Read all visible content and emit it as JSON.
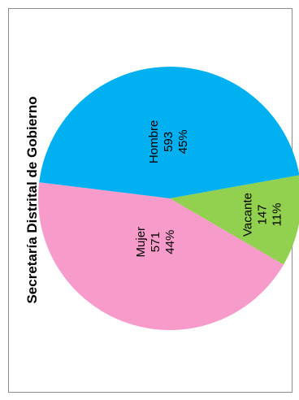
{
  "chart_data": {
    "type": "pie",
    "title": "Secretaría Distrital de Gobierno",
    "slices": [
      {
        "label": "Mujer",
        "value": 571,
        "percent": "44%",
        "color": "#f79bcb"
      },
      {
        "label": "Vacante",
        "value": 147,
        "percent": "11%",
        "color": "#92d050"
      },
      {
        "label": "Hombre",
        "value": 593,
        "percent": "45%",
        "color": "#00b0f0"
      }
    ],
    "orientation": "rotated 90 degrees counter-clockwise",
    "legend": "none"
  }
}
